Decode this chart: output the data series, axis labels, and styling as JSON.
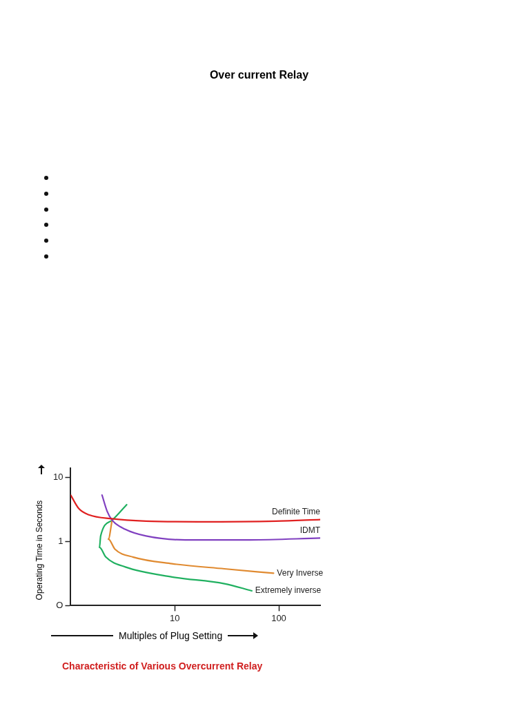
{
  "chart_data": {
    "type": "line",
    "title": "Over current Relay",
    "xlabel": "Multiples of Plug Setting",
    "ylabel": "Operating Time in Seconds",
    "annotations": [
      "Characteristic of Various Overcurrent Relay"
    ],
    "log": "xy",
    "grid": false,
    "legend": false,
    "marker": "none",
    "line_style": "solid",
    "xlim": [
      1,
      250
    ],
    "xticks": [
      10,
      100
    ],
    "ylim": [
      0.1,
      14
    ],
    "yticks": [
      {
        "value": 0.1,
        "label": "O"
      },
      1,
      10
    ],
    "series": [
      {
        "name": "Definite Time",
        "color": "#e02020",
        "x": [
          1,
          1.19,
          1.5,
          2.5,
          5.3,
          16.8,
          94,
          250
        ],
        "values": [
          5.3,
          3.3,
          2.6,
          2.26,
          2.08,
          2.03,
          2.08,
          2.2
        ]
      },
      {
        "name": "IDMT",
        "color": "#8040c0",
        "x": [
          2,
          2.24,
          2.5,
          3.35,
          5.3,
          12.6,
          53,
          250
        ],
        "values": [
          5.3,
          2.96,
          2.15,
          1.55,
          1.22,
          1.06,
          1.06,
          1.13
        ]
      },
      {
        "name": "Very Inverse",
        "color": "#e08a30",
        "x": [
          2.5,
          2.3,
          2.66,
          4,
          9.4,
          30,
          89
        ],
        "values": [
          2.15,
          1.09,
          0.76,
          0.57,
          0.45,
          0.375,
          0.32
        ]
      },
      {
        "name": "Extremely inverse",
        "color": "#20b060",
        "x": [
          3.45,
          2.5,
          1.94,
          1.89,
          2.18,
          3.35,
          9.4,
          30,
          55
        ],
        "values": [
          3.75,
          2.15,
          1.22,
          0.81,
          0.57,
          0.4,
          0.28,
          0.22,
          0.17
        ]
      }
    ]
  }
}
